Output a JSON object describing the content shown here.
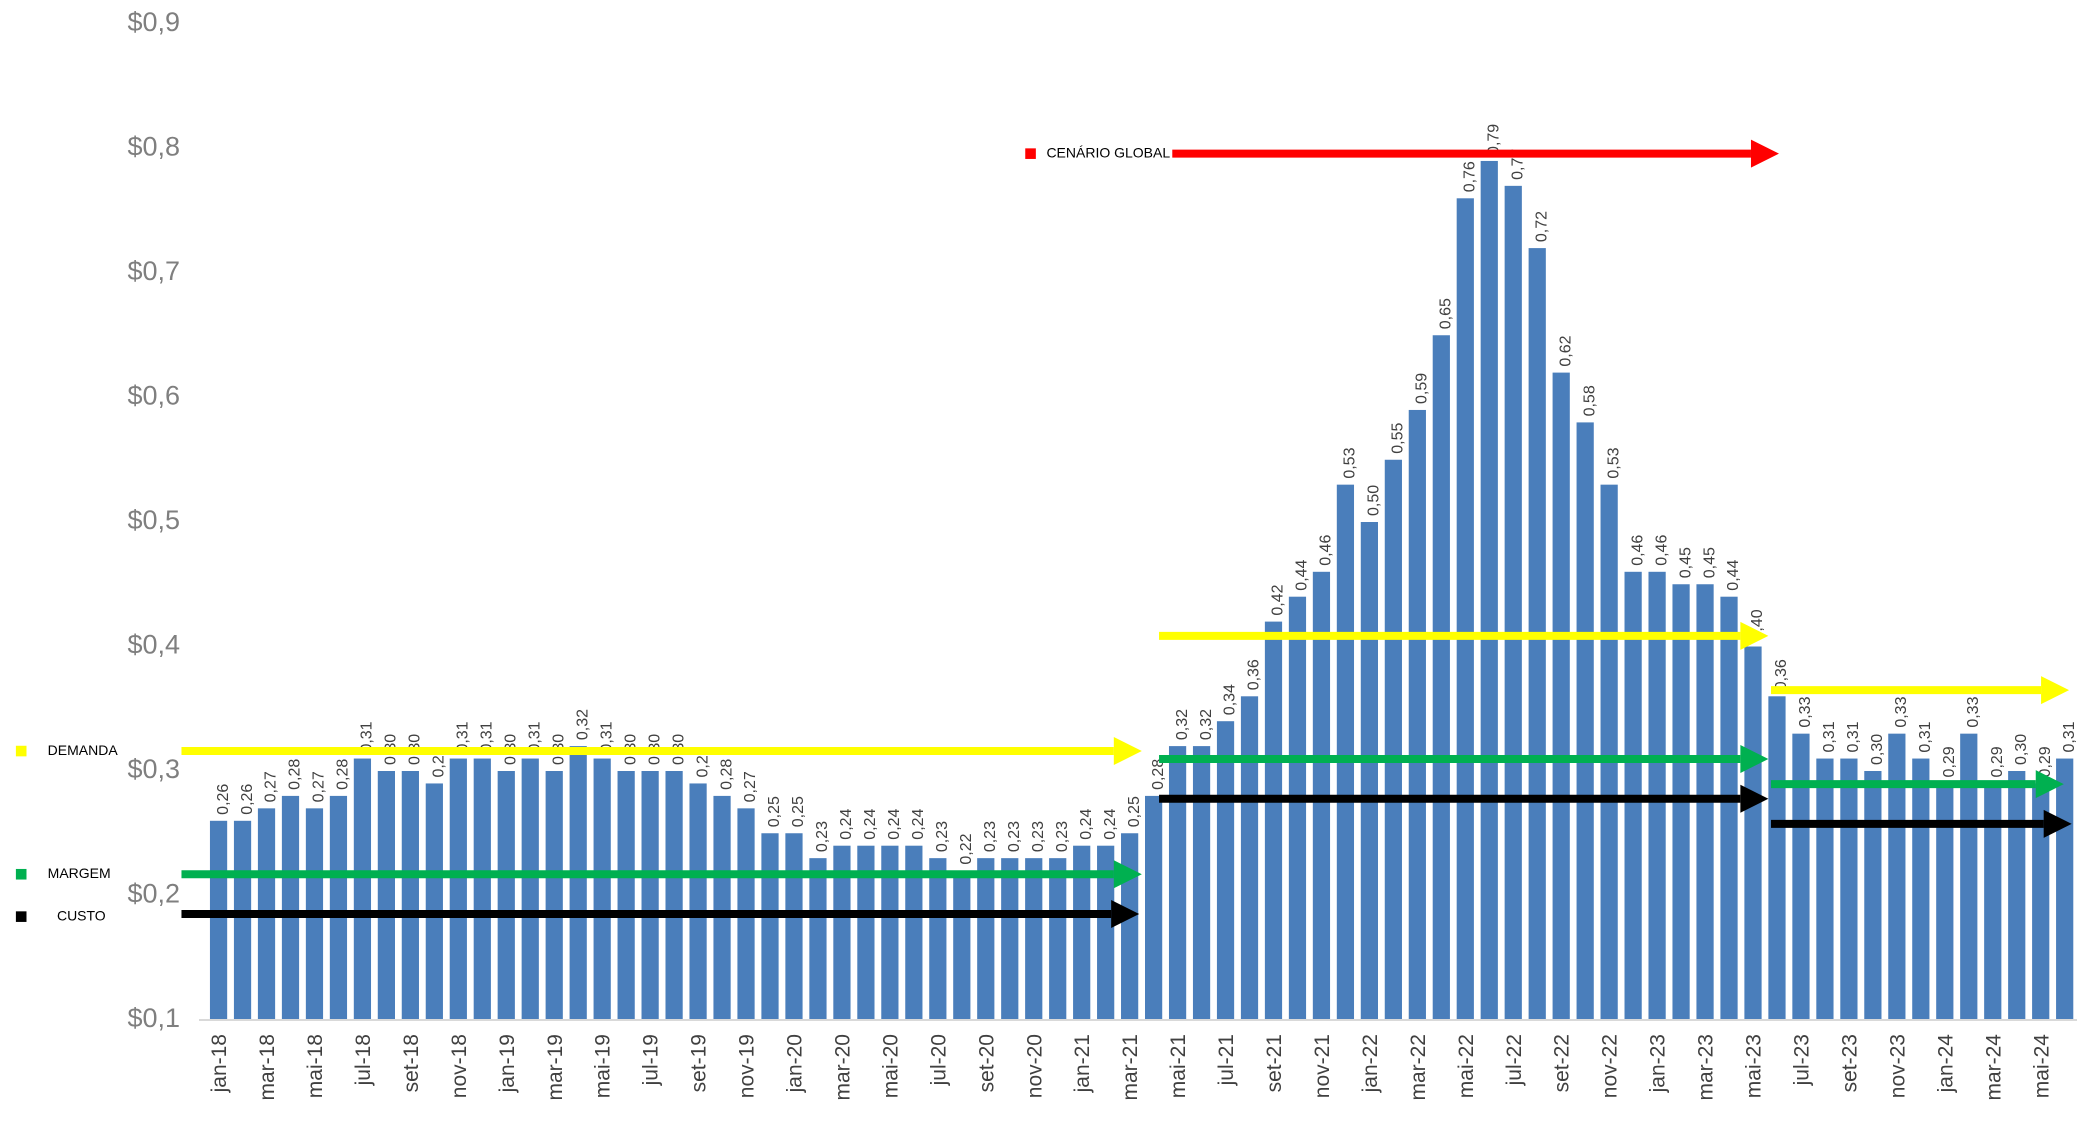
{
  "chart_data": {
    "type": "bar",
    "categories": [
      "jan-18",
      null,
      "mar-18",
      null,
      "mai-18",
      null,
      "jul-18",
      null,
      "set-18",
      null,
      "nov-18",
      null,
      "jan-19",
      null,
      "mar-19",
      null,
      "mai-19",
      null,
      "jul-19",
      null,
      "set-19",
      null,
      "nov-19",
      null,
      "jan-20",
      null,
      "mar-20",
      null,
      "mai-20",
      null,
      "jul-20",
      null,
      "set-20",
      null,
      "nov-20",
      null,
      "jan-21",
      null,
      "mar-21",
      null,
      "mai-21",
      null,
      "jul-21",
      null,
      "set-21",
      null,
      "nov-21",
      null,
      "jan-22",
      null,
      "mar-22",
      null,
      "mai-22",
      null,
      "jul-22",
      null,
      "set-22",
      null,
      "nov-22",
      null,
      "jan-23",
      null,
      "mar-23",
      null,
      "mai-23",
      null,
      "jul-23",
      null,
      "set-23",
      null,
      "nov-23",
      null,
      "jan-24",
      null,
      "mar-24",
      null,
      "mai-24",
      null
    ],
    "values": [
      0.26,
      0.26,
      0.27,
      0.28,
      0.27,
      0.28,
      0.31,
      0.3,
      0.3,
      0.29,
      0.31,
      0.31,
      0.3,
      0.31,
      0.3,
      0.32,
      0.31,
      0.3,
      0.3,
      0.3,
      0.29,
      0.28,
      0.27,
      0.25,
      0.25,
      0.23,
      0.24,
      0.24,
      0.24,
      0.24,
      0.23,
      0.22,
      0.23,
      0.23,
      0.23,
      0.23,
      0.24,
      0.24,
      0.25,
      0.28,
      0.32,
      0.32,
      0.34,
      0.36,
      0.42,
      0.44,
      0.46,
      0.53,
      0.5,
      0.55,
      0.59,
      0.65,
      0.76,
      0.79,
      0.77,
      0.72,
      0.62,
      0.58,
      0.53,
      0.46,
      0.46,
      0.45,
      0.45,
      0.44,
      0.4,
      0.36,
      0.33,
      0.31,
      0.31,
      0.3,
      0.33,
      0.31,
      0.29,
      0.33,
      0.29,
      0.3,
      0.29,
      0.31
    ],
    "value_labels": [
      "0,26",
      "0,26",
      "0,27",
      "0,28",
      "0,27",
      "0,28",
      "0,31",
      "0,30",
      "0,30",
      "0,29",
      "0,31",
      "0,31",
      "0,30",
      "0,31",
      "0,30",
      "0,32",
      "0,31",
      "0,30",
      "0,30",
      "0,30",
      "0,29",
      "0,28",
      "0,27",
      "0,25",
      "0,25",
      "0,23",
      "0,24",
      "0,24",
      "0,24",
      "0,24",
      "0,23",
      "0,22",
      "0,23",
      "0,23",
      "0,23",
      "0,23",
      "0,24",
      "0,24",
      "0,25",
      "0,28",
      "0,32",
      "0,32",
      "0,34",
      "0,36",
      "0,42",
      "0,44",
      "0,46",
      "0,53",
      "0,50",
      "0,55",
      "0,59",
      "0,65",
      "0,76",
      "0,79",
      "0,77",
      "0,72",
      "0,62",
      "0,58",
      "0,53",
      "0,46",
      "0,46",
      "0,45",
      "0,45",
      "0,44",
      "0,40",
      "0,36",
      "0,33",
      "0,31",
      "0,31",
      "0,30",
      "0,33",
      "0,31",
      "0,29",
      "0,33",
      "0,29",
      "0,30",
      "0,29",
      "0,31"
    ],
    "color": "#4a7ebb",
    "ylim": [
      0.1,
      0.9
    ],
    "yticks": [
      {
        "value": 0.1,
        "label": "$0,1"
      },
      {
        "value": 0.2,
        "label": "$0,2"
      },
      {
        "value": 0.3,
        "label": "$0,3"
      },
      {
        "value": 0.4,
        "label": "$0,4"
      },
      {
        "value": 0.5,
        "label": "$0,5"
      },
      {
        "value": 0.6,
        "label": "$0,6"
      },
      {
        "value": 0.7,
        "label": "$0,7"
      },
      {
        "value": 0.8,
        "label": "$0,8"
      },
      {
        "value": 0.9,
        "label": "$0,9"
      }
    ],
    "legend": [
      {
        "name": "DEMANDA",
        "color": "#ffff00"
      },
      {
        "name": "MARGEM",
        "color": "#00b050"
      },
      {
        "name": "CUSTO",
        "color": "#000000"
      },
      {
        "name": "CENÁRIO GLOBAL",
        "color": "#ff0000"
      }
    ]
  }
}
